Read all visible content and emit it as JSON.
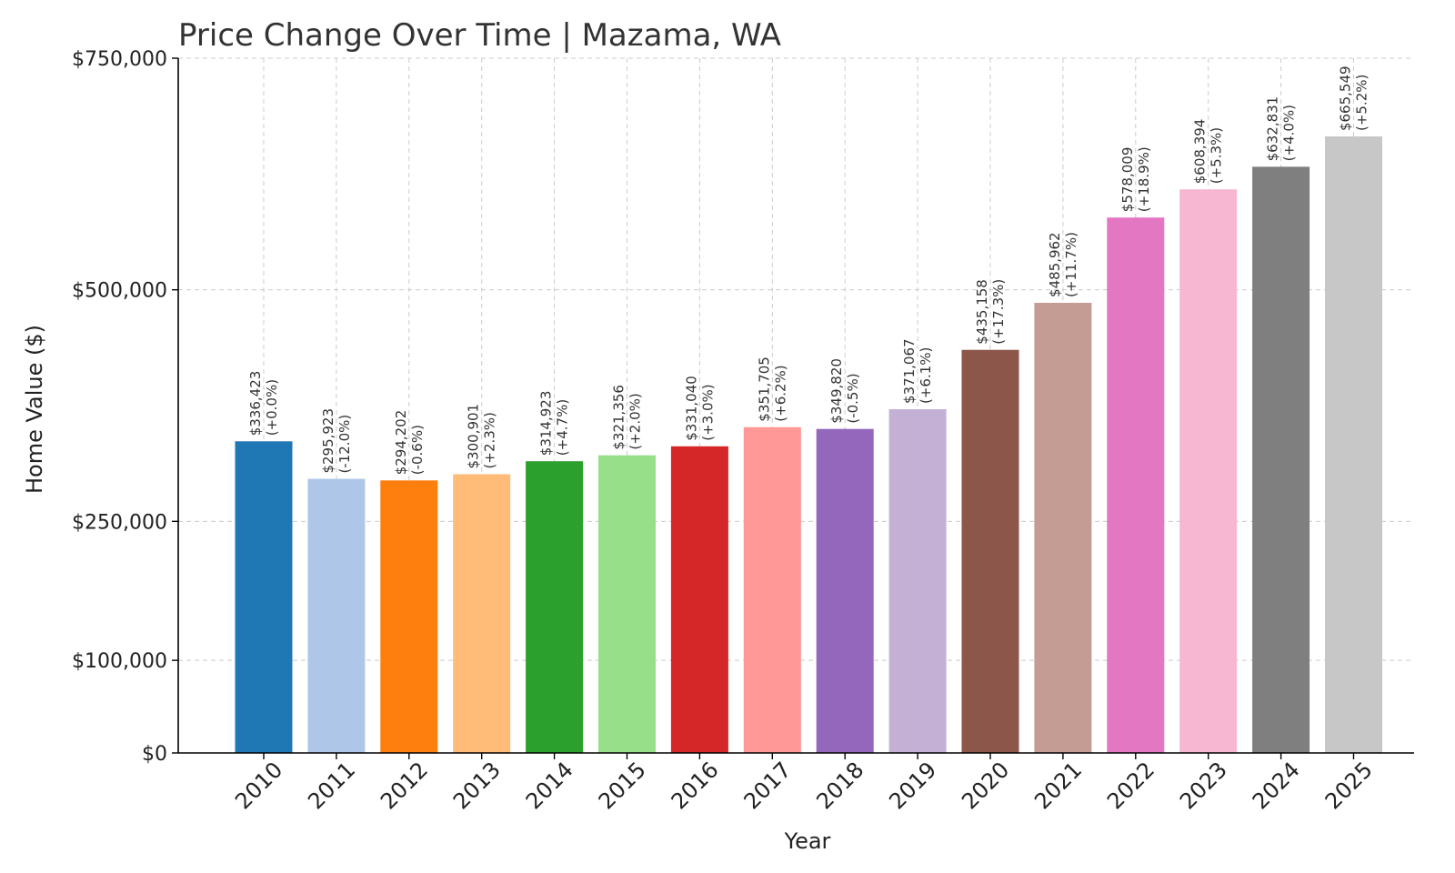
{
  "chart_data": {
    "type": "bar",
    "title": "Price Change Over Time | Mazama, WA",
    "xlabel": "Year",
    "ylabel": "Home Value ($)",
    "categories": [
      "2010",
      "2011",
      "2012",
      "2013",
      "2014",
      "2015",
      "2016",
      "2017",
      "2018",
      "2019",
      "2020",
      "2021",
      "2022",
      "2023",
      "2024",
      "2025"
    ],
    "values": [
      336423,
      295923,
      294202,
      300901,
      314923,
      321356,
      331040,
      351705,
      349820,
      371067,
      435158,
      485962,
      578009,
      608394,
      632831,
      665549
    ],
    "value_labels": [
      "$336,423",
      "$295,923",
      "$294,202",
      "$300,901",
      "$314,923",
      "$321,356",
      "$331,040",
      "$351,705",
      "$349,820",
      "$371,067",
      "$435,158",
      "$485,962",
      "$578,009",
      "$608,394",
      "$632,831",
      "$665,549"
    ],
    "change_labels": [
      "(+0.0%)",
      "(-12.0%)",
      "(-0.6%)",
      "(+2.3%)",
      "(+4.7%)",
      "(+2.0%)",
      "(+3.0%)",
      "(+6.2%)",
      "(-0.5%)",
      "(+6.1%)",
      "(+17.3%)",
      "(+11.7%)",
      "(+18.9%)",
      "(+5.3%)",
      "(+4.0%)",
      "(+5.2%)"
    ],
    "colors": [
      "#1f77b4",
      "#aec7e8",
      "#ff7f0e",
      "#ffbb78",
      "#2ca02c",
      "#98df8a",
      "#d62728",
      "#ff9896",
      "#9467bd",
      "#c5b0d5",
      "#8c564b",
      "#c49c94",
      "#e377c2",
      "#f7b6d2",
      "#7f7f7f",
      "#c7c7c7"
    ],
    "yticks": [
      0,
      100000,
      250000,
      500000,
      750000
    ],
    "ytick_labels": [
      "$0",
      "$100,000",
      "$250,000",
      "$500,000",
      "$750,000"
    ],
    "ylim": [
      0,
      750000
    ],
    "grid": true
  }
}
